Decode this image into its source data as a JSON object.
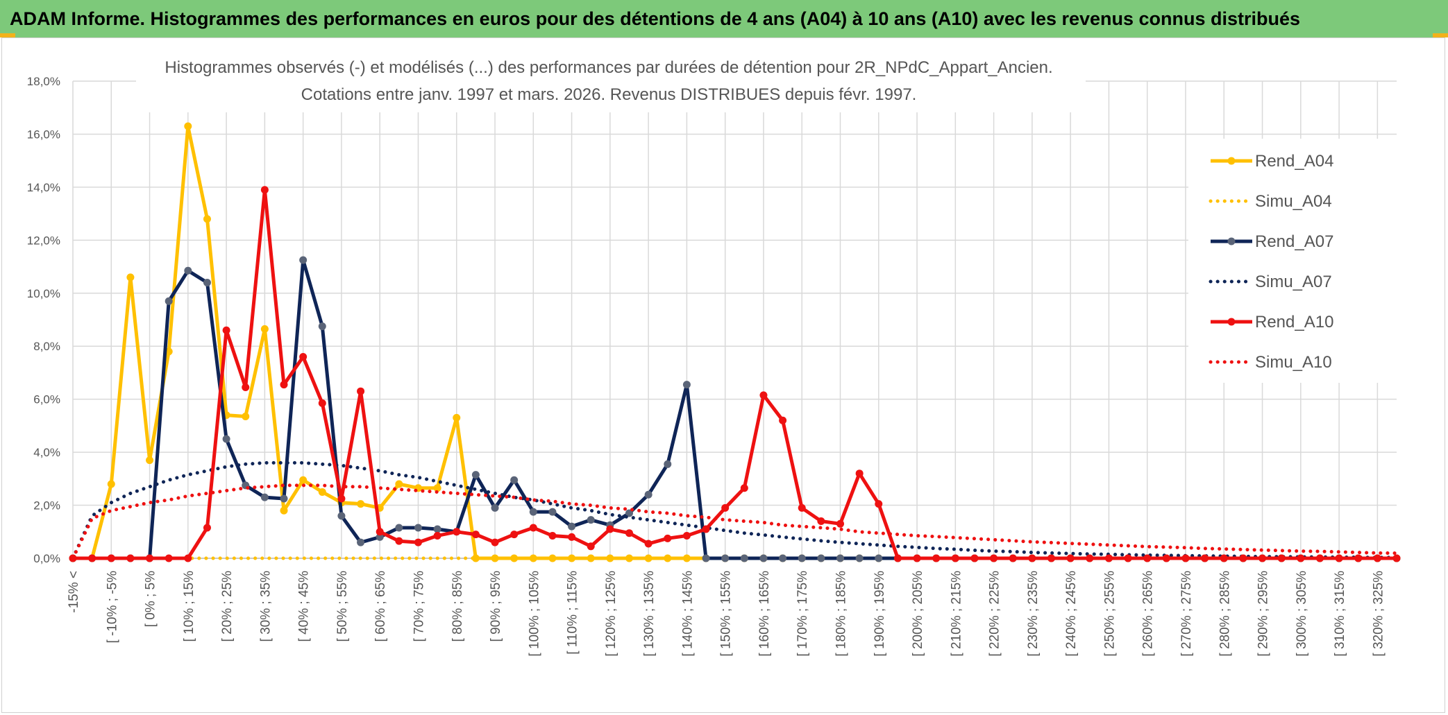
{
  "banner": {
    "title": "ADAM Informe. Histogrammes des performances en euros pour des détentions de 4 ans (A04) à 10 ans (A10) avec les revenus connus distribués"
  },
  "colors": {
    "banner_bg": "#7dc97a",
    "A04": "#ffc000",
    "A07": "#0f2557",
    "A10": "#ee1111",
    "markers_A07": "#5a6478"
  },
  "chart_data": {
    "type": "line",
    "title": "Histogrammes observés (-) et modélisés (...) des performances par durées de détention pour 2R_NPdC_Appart_Ancien.",
    "subtitle": "Cotations entre janv. 1997 et mars. 2026. Revenus DISTRIBUES depuis févr. 1997.",
    "xlabel": "",
    "ylabel": "",
    "ylim": [
      0,
      18
    ],
    "y_ticks": [
      "0,0%",
      "2,0%",
      "4,0%",
      "6,0%",
      "8,0%",
      "10,0%",
      "12,0%",
      "14,0%",
      "16,0%",
      "18,0%"
    ],
    "grid": true,
    "legend_position": "right",
    "categories": [
      "-15% <",
      "[ -10% ; -5%",
      "[ 0% ; 5%",
      "[ 10% ; 15%",
      "[ 20% ; 25%",
      "[ 30% ; 35%",
      "[ 40% ; 45%",
      "[ 50% ; 55%",
      "[ 60% ; 65%",
      "[ 70% ; 75%",
      "[ 80% ; 85%",
      "[ 90% ; 95%",
      "[ 100% ; 105%",
      "[ 110% ; 115%",
      "[ 120% ; 125%",
      "[ 130% ; 135%",
      "[ 140% ; 145%",
      "[ 150% ; 155%",
      "[ 160% ; 165%",
      "[ 170% ; 175%",
      "[ 180% ; 185%",
      "[ 190% ; 195%",
      "[ 200% ; 205%",
      "[ 210% ; 215%",
      "[ 220% ; 225%",
      "[ 230% ; 235%",
      "[ 240% ; 245%",
      "[ 250% ; 255%",
      "[ 260% ; 265%",
      "[ 270% ; 275%",
      "[ 280% ; 285%",
      "[ 290% ; 295%",
      "[ 300% ; 305%",
      "[ 310% ; 315%",
      "[ 320% ; 325%"
    ],
    "x": [
      -15,
      -10,
      -5,
      0,
      5,
      10,
      15,
      20,
      25,
      30,
      35,
      40,
      45,
      50,
      55,
      60,
      65,
      70,
      75,
      80,
      85,
      90,
      95,
      100,
      105,
      110,
      115,
      120,
      125,
      130,
      135,
      140,
      145,
      150,
      155,
      160,
      165,
      170,
      175,
      180,
      185,
      190,
      195,
      200,
      205,
      210,
      215,
      220,
      225,
      230,
      235,
      240,
      245,
      250,
      255,
      260,
      265,
      270,
      275,
      280,
      285,
      290,
      295,
      300,
      305,
      310,
      315,
      320,
      325,
      330
    ],
    "series": [
      {
        "name": "Rend_A04",
        "style": "solid",
        "color": "#ffc000",
        "values": [
          0,
          0,
          2.8,
          10.6,
          3.7,
          7.8,
          16.3,
          12.8,
          5.4,
          5.35,
          8.65,
          1.8,
          2.95,
          2.5,
          2.1,
          2.05,
          1.9,
          2.8,
          2.65,
          2.65,
          5.3,
          0,
          0,
          0,
          0,
          0,
          0,
          0,
          0,
          0,
          0,
          0,
          0,
          0,
          0,
          0,
          0,
          0,
          0,
          0,
          0,
          0,
          0,
          0,
          0,
          0,
          0,
          0,
          0,
          0,
          0,
          0,
          0,
          0,
          0,
          0,
          0,
          0,
          0,
          0,
          0,
          0,
          0,
          0,
          0,
          0,
          0,
          0,
          0,
          0
        ]
      },
      {
        "name": "Simu_A04",
        "style": "dotted",
        "color": "#ffc000",
        "values": [
          0,
          0,
          0,
          0,
          0,
          0,
          0,
          0,
          0,
          0,
          0,
          0,
          0,
          0,
          0,
          0,
          0,
          0,
          0,
          0,
          0,
          0,
          0,
          0,
          0,
          0,
          0,
          0,
          0,
          0,
          0,
          0,
          0,
          0,
          0,
          0,
          0,
          0,
          0,
          0,
          0,
          0,
          0,
          0,
          0,
          0,
          0,
          0,
          0,
          0,
          0,
          0,
          0,
          0,
          0,
          0,
          0,
          0,
          0,
          0,
          0,
          0,
          0,
          0,
          0,
          0,
          0,
          0,
          0,
          0
        ]
      },
      {
        "name": "Rend_A07",
        "style": "solid",
        "color": "#0f2557",
        "values": [
          0,
          0,
          0,
          0,
          0,
          9.7,
          10.85,
          10.4,
          4.5,
          2.75,
          2.3,
          2.25,
          11.25,
          8.75,
          1.6,
          0.6,
          0.8,
          1.15,
          1.15,
          1.1,
          1.0,
          3.15,
          1.9,
          2.95,
          1.75,
          1.75,
          1.2,
          1.45,
          1.25,
          1.7,
          2.4,
          3.55,
          6.55,
          0,
          0,
          0,
          0,
          0,
          0,
          0,
          0,
          0,
          0,
          0,
          0,
          0,
          0,
          0,
          0,
          0,
          0,
          0,
          0,
          0,
          0,
          0,
          0,
          0,
          0,
          0,
          0,
          0,
          0,
          0,
          0,
          0,
          0,
          0,
          0,
          0
        ]
      },
      {
        "name": "Simu_A07",
        "style": "dotted",
        "color": "#0f2557",
        "values": [
          0,
          1.6,
          2.1,
          2.45,
          2.7,
          2.95,
          3.15,
          3.3,
          3.45,
          3.55,
          3.6,
          3.6,
          3.6,
          3.55,
          3.5,
          3.4,
          3.3,
          3.15,
          3.05,
          2.9,
          2.75,
          2.6,
          2.45,
          2.3,
          2.2,
          2.05,
          1.9,
          1.8,
          1.65,
          1.55,
          1.45,
          1.35,
          1.25,
          1.15,
          1.05,
          0.95,
          0.88,
          0.8,
          0.73,
          0.66,
          0.6,
          0.55,
          0.5,
          0.45,
          0.41,
          0.37,
          0.34,
          0.3,
          0.27,
          0.25,
          0.22,
          0.2,
          0.18,
          0.16,
          0.15,
          0.13,
          0.12,
          0.11,
          0.1,
          0.09,
          0.08,
          0.07,
          0.06,
          0.06,
          0.05,
          0.05,
          0.04,
          0.04,
          0.03,
          0.03
        ]
      },
      {
        "name": "Rend_A10",
        "style": "solid",
        "color": "#ee1111",
        "values": [
          0,
          0,
          0,
          0,
          0,
          0,
          0,
          1.15,
          8.6,
          6.45,
          13.9,
          6.55,
          7.6,
          5.85,
          2.25,
          6.3,
          1.0,
          0.65,
          0.6,
          0.85,
          1.0,
          0.9,
          0.6,
          0.9,
          1.15,
          0.85,
          0.8,
          0.45,
          1.1,
          0.95,
          0.55,
          0.75,
          0.85,
          1.1,
          1.9,
          2.65,
          6.15,
          5.2,
          1.9,
          1.4,
          1.3,
          3.2,
          2.05,
          0,
          0,
          0,
          0,
          0,
          0,
          0,
          0,
          0,
          0,
          0,
          0,
          0,
          0,
          0,
          0,
          0,
          0,
          0,
          0,
          0,
          0,
          0,
          0,
          0,
          0,
          0
        ]
      },
      {
        "name": "Simu_A10",
        "style": "dotted",
        "color": "#ee1111",
        "values": [
          0,
          1.5,
          1.8,
          1.95,
          2.1,
          2.2,
          2.35,
          2.45,
          2.55,
          2.65,
          2.7,
          2.75,
          2.75,
          2.75,
          2.7,
          2.7,
          2.65,
          2.6,
          2.55,
          2.5,
          2.45,
          2.4,
          2.35,
          2.3,
          2.2,
          2.15,
          2.05,
          2.0,
          1.9,
          1.85,
          1.75,
          1.7,
          1.6,
          1.55,
          1.45,
          1.4,
          1.35,
          1.25,
          1.2,
          1.15,
          1.1,
          1.0,
          0.95,
          0.9,
          0.85,
          0.82,
          0.78,
          0.74,
          0.7,
          0.66,
          0.62,
          0.59,
          0.56,
          0.53,
          0.5,
          0.47,
          0.44,
          0.42,
          0.4,
          0.37,
          0.35,
          0.33,
          0.31,
          0.29,
          0.27,
          0.26,
          0.24,
          0.22,
          0.2,
          0.19
        ]
      }
    ]
  }
}
